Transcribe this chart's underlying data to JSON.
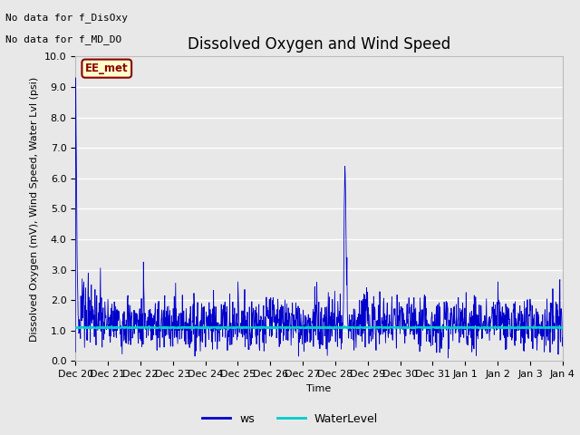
{
  "title": "Dissolved Oxygen and Wind Speed",
  "ylabel": "Dissolved Oxygen (mV), Wind Speed, Water Lvl (psi)",
  "xlabel": "Time",
  "text_no_data_1": "No data for f_DisOxy",
  "text_no_data_2": "No data for f_MD_DO",
  "station_label": "EE_met",
  "ylim": [
    0.0,
    10.0
  ],
  "yticks": [
    0.0,
    1.0,
    2.0,
    3.0,
    4.0,
    5.0,
    6.0,
    7.0,
    8.0,
    9.0,
    10.0
  ],
  "xtick_labels": [
    "Dec 20",
    "Dec 21",
    "Dec 22",
    "Dec 23",
    "Dec 24",
    "Dec 25",
    "Dec 26",
    "Dec 27",
    "Dec 28",
    "Dec 29",
    "Dec 30",
    "Dec 31",
    "Jan 1",
    "Jan 2",
    "Jan 3",
    "Jan 4"
  ],
  "ws_color": "#0000cd",
  "water_level_color": "#00cccc",
  "water_level_value": 1.1,
  "fig_bg_color": "#e8e8e8",
  "plot_bg_color": "#e8e8e8",
  "grid_color": "#ffffff",
  "title_fontsize": 12,
  "label_fontsize": 8,
  "tick_fontsize": 8
}
